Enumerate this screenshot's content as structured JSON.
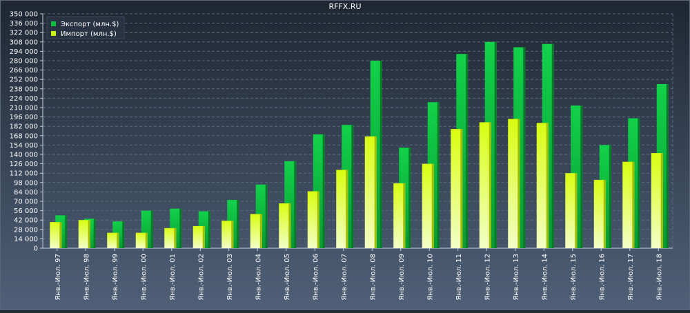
{
  "chart_data": {
    "type": "bar",
    "title": "RFFX.RU",
    "categories": [
      "Янв.-Июл. 97",
      "Янв.-Июл. 98",
      "Янв.-Июл. 99",
      "Янв.-Июл. 00",
      "Янв.-Июл. 01",
      "Янв.-Июл. 02",
      "Янв.-Июл. 03",
      "Янв.-Июл. 04",
      "Янв.-Июл. 05",
      "Янв.-Июл. 06",
      "Янв.-Июл. 07",
      "Янв.-Июл. 08",
      "Янв.-Июл. 09",
      "Янв.-Июл. 10",
      "Янв.-Июл. 11",
      "Янв.-Июл. 12",
      "Янв.-Июл. 13",
      "Янв.-Июл. 14",
      "Янв.-Июл. 15",
      "Янв.-Июл. 16",
      "Янв.-Июл. 17",
      "Янв.-Июл. 18"
    ],
    "series": [
      {
        "name": "Экспорт (млн.$)",
        "color": "#10c040",
        "values": [
          49000,
          44000,
          40000,
          56000,
          59000,
          55000,
          72000,
          95000,
          130000,
          170000,
          184000,
          280000,
          150000,
          218000,
          290000,
          308000,
          300000,
          305000,
          213000,
          154000,
          194000,
          245000
        ]
      },
      {
        "name": "Импорт (млн.$)",
        "color": "#ccf000",
        "values": [
          39000,
          42000,
          23000,
          23000,
          30000,
          33000,
          41000,
          51000,
          67000,
          85000,
          117000,
          167000,
          97000,
          126000,
          178000,
          188000,
          193000,
          187000,
          112000,
          102000,
          129000,
          142000
        ]
      }
    ],
    "ylim": [
      0,
      350000
    ],
    "yticks": [
      "0",
      "14 000",
      "28 000",
      "42 000",
      "56 000",
      "70 000",
      "84 000",
      "98 000",
      "112 000",
      "126 000",
      "140 000",
      "154 000",
      "168 000",
      "182 000",
      "196 000",
      "210 000",
      "224 000",
      "238 000",
      "252 000",
      "266 000",
      "280 000",
      "294 000",
      "308 000",
      "322 000",
      "336 000",
      "350 000"
    ],
    "ytick_values": [
      0,
      14000,
      28000,
      42000,
      56000,
      70000,
      84000,
      98000,
      112000,
      126000,
      140000,
      154000,
      168000,
      182000,
      196000,
      210000,
      224000,
      238000,
      252000,
      266000,
      280000,
      294000,
      308000,
      322000,
      336000,
      350000
    ],
    "grid": true,
    "legend": "top-left",
    "colors": {
      "axis": "#c8d0dc",
      "grid": "#5a6a80",
      "text": "#ffffff",
      "legend_bg": "#2a3444"
    }
  }
}
